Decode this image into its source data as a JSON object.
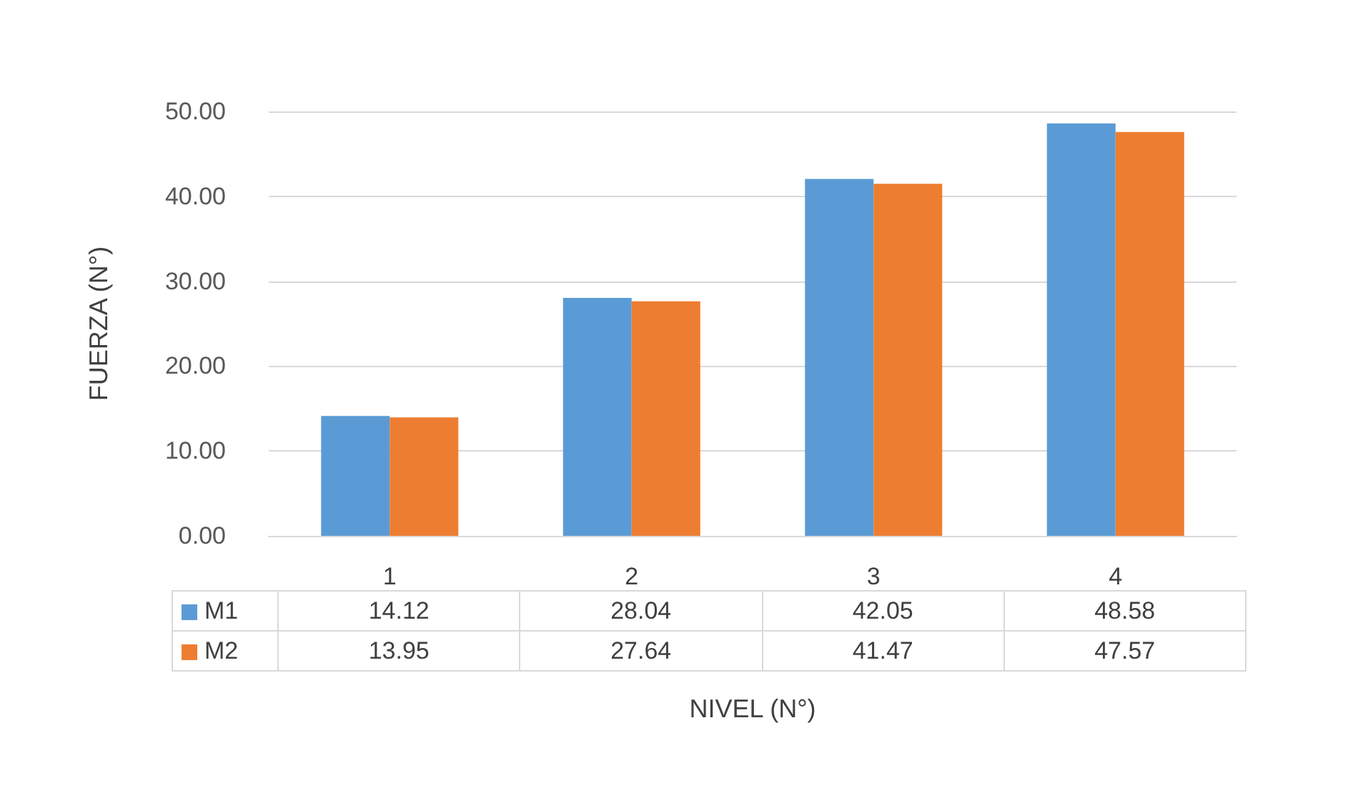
{
  "chart_data": {
    "type": "bar",
    "xlabel": "NIVEL (N°)",
    "ylabel": "FUERZA (N°)",
    "categories": [
      "1",
      "2",
      "3",
      "4"
    ],
    "series": [
      {
        "name": "M1",
        "color": "#5b9bd5",
        "values": [
          14.12,
          28.04,
          42.05,
          48.58
        ]
      },
      {
        "name": "M2",
        "color": "#ed7d31",
        "values": [
          13.95,
          27.64,
          41.47,
          47.57
        ]
      }
    ],
    "ylim": [
      0,
      50
    ],
    "yticks": [
      {
        "value": 0,
        "label": "0.00"
      },
      {
        "value": 10,
        "label": "10.00"
      },
      {
        "value": 20,
        "label": "20.00"
      },
      {
        "value": 30,
        "label": "30.00"
      },
      {
        "value": 40,
        "label": "40.00"
      },
      {
        "value": 50,
        "label": "50.00"
      }
    ],
    "grid": "y",
    "legend": "bottom",
    "data_labels": true
  }
}
